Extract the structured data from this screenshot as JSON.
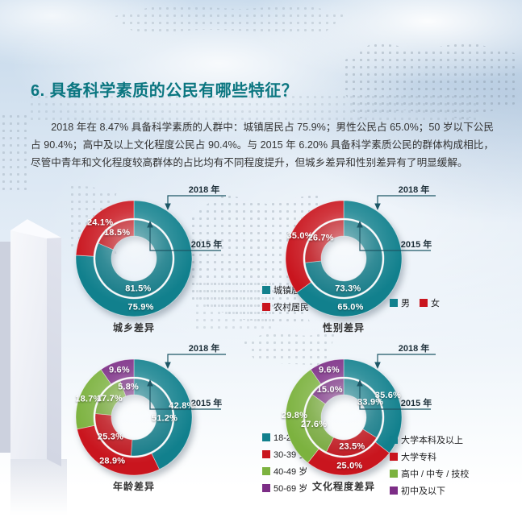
{
  "page": {
    "title": "6. 具备科学素质的公民有哪些特征？",
    "paragraph": "2018 年在 8.47% 具备科学素质的人群中：城镇居民占 75.9%；男性公民占 65.0%；50 岁以下公民占 90.4%；高中及以上文化程度公民占 90.4%。与 2015 年 6.20% 具备科学素质公民的群体构成相比，尽管中青年和文化程度较高群体的占比均有不同程度提升，但城乡差异和性别差异有了明显缓解。"
  },
  "colors": {
    "teal": "#11808d",
    "red": "#c9151e",
    "green": "#7cb23f",
    "purple": "#7c2d86",
    "title_accent": "#0b7680",
    "annotation_line": "#1d5766"
  },
  "chart_data": [
    {
      "type": "donut-nested",
      "caption": "城乡差异",
      "legend_layout": "vertical",
      "categories": [
        "城镇居民",
        "农村居民"
      ],
      "colors": [
        "#11808d",
        "#c9151e"
      ],
      "rings": [
        {
          "label": "2018 年",
          "position": "outer",
          "values": [
            75.9,
            24.1
          ]
        },
        {
          "label": "2015 年",
          "position": "inner",
          "values": [
            81.5,
            18.5
          ]
        }
      ]
    },
    {
      "type": "donut-nested",
      "caption": "性别差异",
      "legend_layout": "horizontal",
      "categories": [
        "男",
        "女"
      ],
      "colors": [
        "#11808d",
        "#c9151e"
      ],
      "rings": [
        {
          "label": "2018 年",
          "position": "outer",
          "values": [
            65.0,
            35.0
          ]
        },
        {
          "label": "2015 年",
          "position": "inner",
          "values": [
            73.3,
            26.7
          ]
        }
      ]
    },
    {
      "type": "donut-nested",
      "caption": "年龄差异",
      "legend_layout": "vertical",
      "categories": [
        "18-29 岁",
        "30-39 岁",
        "40-49 岁",
        "50-69 岁"
      ],
      "colors": [
        "#11808d",
        "#c9151e",
        "#7cb23f",
        "#7c2d86"
      ],
      "rings": [
        {
          "label": "2018 年",
          "position": "outer",
          "values": [
            42.8,
            28.9,
            18.7,
            9.6
          ]
        },
        {
          "label": "2015 年",
          "position": "inner",
          "values": [
            51.2,
            25.3,
            17.7,
            5.8
          ]
        }
      ]
    },
    {
      "type": "donut-nested",
      "caption": "文化程度差异",
      "legend_layout": "vertical",
      "categories": [
        "大学本科及以上",
        "大学专科",
        "高中 / 中专 / 技校",
        "初中及以下"
      ],
      "colors": [
        "#11808d",
        "#c9151e",
        "#7cb23f",
        "#7c2d86"
      ],
      "rings": [
        {
          "label": "2018 年",
          "position": "outer",
          "values": [
            35.6,
            25.0,
            29.8,
            9.6
          ]
        },
        {
          "label": "2015 年",
          "position": "inner",
          "values": [
            33.9,
            23.5,
            27.6,
            15.0
          ]
        }
      ]
    }
  ]
}
